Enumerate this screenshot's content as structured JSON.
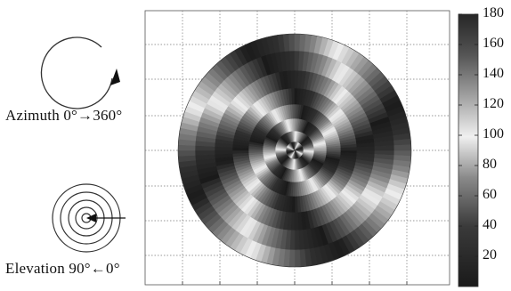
{
  "left_panel": {
    "azimuth": {
      "caption": "Azimuth 0°→360°",
      "icon": "circular-arrow-icon"
    },
    "elevation": {
      "caption": "Elevation 90°←0°",
      "icon": "concentric-rings-icon"
    }
  },
  "main_plot": {
    "type": "spiral-phase-map",
    "arms": 4,
    "grid": true
  },
  "colorbar": {
    "range": [
      0,
      180
    ],
    "tick_labels": [
      "180",
      "160",
      "140",
      "120",
      "100",
      "80",
      "60",
      "40",
      "20"
    ],
    "colors": {
      "low": "#1a1a1a",
      "mid_low": "#5a5a5a",
      "mid": "#efefef",
      "mid_high": "#7a7a7a",
      "high": "#1e1e1e"
    }
  }
}
